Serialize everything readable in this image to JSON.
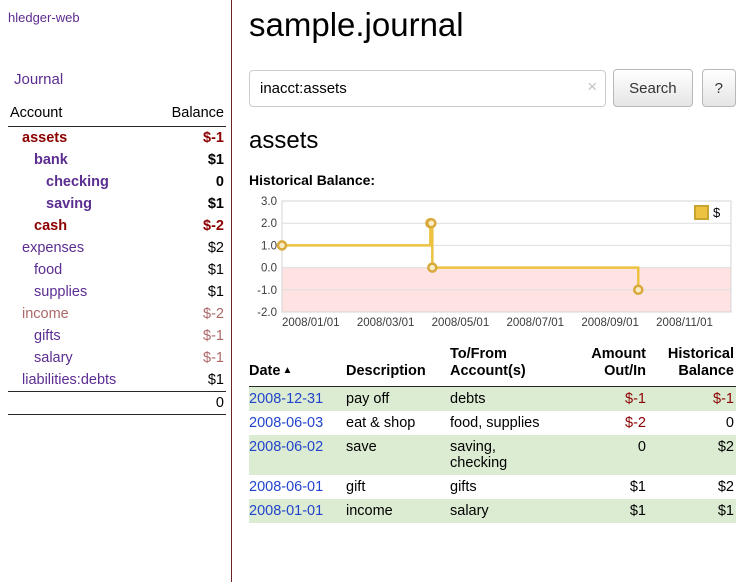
{
  "colors": {
    "accent_purple": "#5C2D91",
    "negative_red": "#8B0000",
    "muted_negative": "#AD6868",
    "link_blue": "#2244CC",
    "stripe_green": "#DCECD2",
    "sidebar_divider": "#6B2424"
  },
  "sidebar": {
    "app_title": "hledger-web",
    "journal_link": "Journal",
    "accounts": {
      "header_account": "Account",
      "header_balance": "Balance",
      "rows": [
        {
          "name": "assets",
          "balance": "$-1",
          "depth": 1,
          "bold": true,
          "name_tone": "negative",
          "balance_tone": "negative"
        },
        {
          "name": "bank",
          "balance": "$1",
          "depth": 2,
          "bold": true,
          "name_tone": "link",
          "balance_tone": "normal"
        },
        {
          "name": "checking",
          "balance": "0",
          "depth": 3,
          "bold": true,
          "name_tone": "link",
          "balance_tone": "normal"
        },
        {
          "name": "saving",
          "balance": "$1",
          "depth": 3,
          "bold": true,
          "name_tone": "link",
          "balance_tone": "normal"
        },
        {
          "name": "cash",
          "balance": "$-2",
          "depth": 2,
          "bold": true,
          "name_tone": "negative",
          "balance_tone": "negative"
        },
        {
          "name": "expenses",
          "balance": "$2",
          "depth": 1,
          "bold": false,
          "name_tone": "link",
          "balance_tone": "normal"
        },
        {
          "name": "food",
          "balance": "$1",
          "depth": 2,
          "bold": false,
          "name_tone": "link",
          "balance_tone": "normal"
        },
        {
          "name": "supplies",
          "balance": "$1",
          "depth": 2,
          "bold": false,
          "name_tone": "link",
          "balance_tone": "normal"
        },
        {
          "name": "income",
          "balance": "$-2",
          "depth": 1,
          "bold": false,
          "name_tone": "muted",
          "balance_tone": "muted"
        },
        {
          "name": "gifts",
          "balance": "$-1",
          "depth": 2,
          "bold": false,
          "name_tone": "link",
          "balance_tone": "muted"
        },
        {
          "name": "salary",
          "balance": "$-1",
          "depth": 2,
          "bold": false,
          "name_tone": "link",
          "balance_tone": "muted"
        },
        {
          "name": "liabilities:debts",
          "balance": "$1",
          "depth": 1,
          "bold": false,
          "name_tone": "link",
          "balance_tone": "normal"
        }
      ],
      "total": "0"
    }
  },
  "main": {
    "title": "sample.journal",
    "search": {
      "value": "inacct:assets",
      "clear_icon": "×",
      "search_button": "Search",
      "help_button": "?"
    },
    "account_heading": "assets",
    "chart_label": "Historical Balance:"
  },
  "chart_data": {
    "type": "line",
    "step": true,
    "title": "Historical Balance:",
    "x_start": "2008-01-01",
    "x_span_days": 460,
    "ylim": [
      -2,
      3
    ],
    "yticks": [
      "3.0",
      "2.0",
      "1.0",
      "0.0",
      "-1.0",
      "-2.0"
    ],
    "xticks": [
      "2008/01/01",
      "2008/03/01",
      "2008/05/01",
      "2008/07/01",
      "2008/09/01",
      "2008/11/01"
    ],
    "legend": {
      "label": "$",
      "position": "top-right"
    },
    "series": [
      {
        "name": "$",
        "points": [
          {
            "date": "2008-01-01",
            "value": 1
          },
          {
            "date": "2008-06-01",
            "value": 2
          },
          {
            "date": "2008-06-02",
            "value": 2
          },
          {
            "date": "2008-06-03",
            "value": 0
          },
          {
            "date": "2008-12-31",
            "value": -1
          }
        ]
      }
    ],
    "colors": {
      "line": "#EDC240",
      "point_fill": "#F8ECC7",
      "point_stroke": "#D9A93C",
      "negative_region": "#FFE2E2",
      "legend_border": "#C9A42E"
    }
  },
  "register": {
    "headers": {
      "date": "Date",
      "sort_icon": "▲",
      "description": "Description",
      "tofrom": "To/From\nAccount(s)",
      "amount": "Amount\nOut/In",
      "balance": "Historical\nBalance"
    },
    "rows": [
      {
        "date": "2008-12-31",
        "description": "pay off",
        "accounts": "debts",
        "amount": "$-1",
        "balance": "$-1",
        "amount_negative": true,
        "balance_negative": true
      },
      {
        "date": "2008-06-03",
        "description": "eat & shop",
        "accounts": "food, supplies",
        "amount": "$-2",
        "balance": "0",
        "amount_negative": true,
        "balance_negative": false
      },
      {
        "date": "2008-06-02",
        "description": "save",
        "accounts": "saving, checking",
        "amount": "0",
        "balance": "$2",
        "amount_negative": false,
        "balance_negative": false
      },
      {
        "date": "2008-06-01",
        "description": "gift",
        "accounts": "gifts",
        "amount": "$1",
        "balance": "$2",
        "amount_negative": false,
        "balance_negative": false
      },
      {
        "date": "2008-01-01",
        "description": "income",
        "accounts": "salary",
        "amount": "$1",
        "balance": "$1",
        "amount_negative": false,
        "balance_negative": false
      }
    ]
  }
}
